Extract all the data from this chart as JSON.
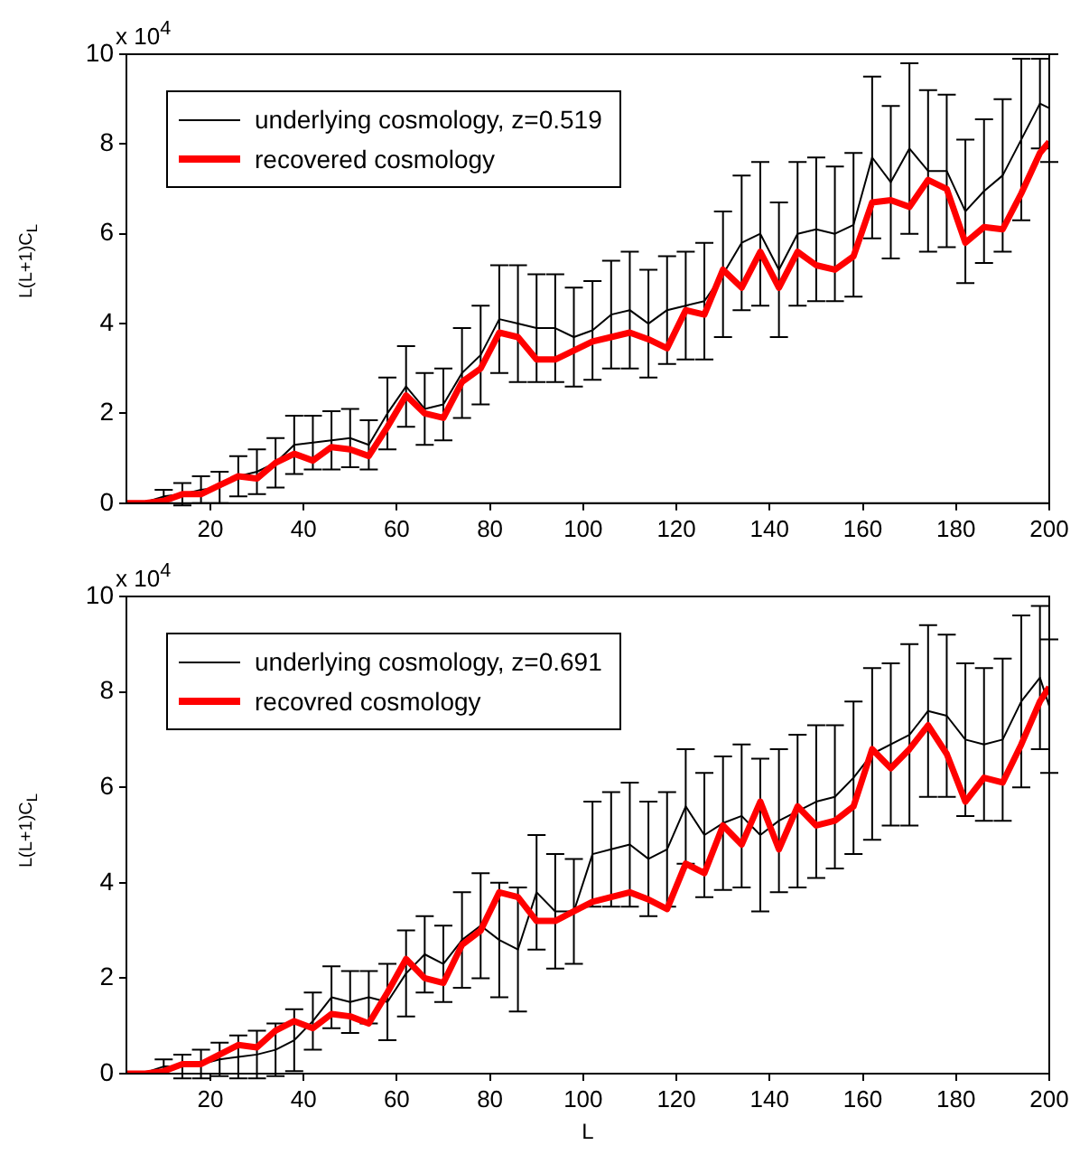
{
  "chart_data": [
    {
      "type": "line",
      "ylabel": "L(L+1)C$_{L}$",
      "annotations": [
        "x 10$^{4}$"
      ],
      "xlim": [
        2,
        200
      ],
      "xticks": [
        20,
        40,
        60,
        80,
        100,
        120,
        140,
        160,
        180,
        200
      ],
      "ylim": [
        0,
        10
      ],
      "yticks": [
        0,
        2,
        4,
        6,
        8,
        10
      ],
      "grid": false,
      "legend": "top left",
      "x": [
        2,
        6,
        10,
        14,
        18,
        22,
        26,
        30,
        34,
        38,
        42,
        46,
        50,
        54,
        58,
        62,
        66,
        70,
        74,
        78,
        82,
        86,
        90,
        94,
        98,
        102,
        106,
        110,
        114,
        118,
        122,
        126,
        130,
        134,
        138,
        142,
        146,
        150,
        154,
        158,
        162,
        166,
        170,
        174,
        178,
        182,
        186,
        190,
        194,
        198,
        200
      ],
      "series": [
        {
          "name": "underlying cosmology, z=0.519",
          "color": "#000000",
          "values": [
            0,
            0.02,
            0.15,
            0.2,
            0.3,
            0.35,
            0.6,
            0.7,
            0.9,
            1.3,
            1.35,
            1.4,
            1.45,
            1.3,
            2.0,
            2.6,
            2.1,
            2.2,
            2.9,
            3.3,
            4.1,
            4.0,
            3.9,
            3.9,
            3.7,
            3.85,
            4.2,
            4.3,
            4.0,
            4.3,
            4.4,
            4.5,
            5.1,
            5.8,
            6.0,
            5.2,
            6.0,
            6.1,
            6.0,
            6.2,
            7.7,
            7.15,
            7.9,
            7.4,
            7.4,
            6.5,
            6.95,
            7.3,
            8.1,
            8.9,
            8.8
          ],
          "errors": [
            null,
            null,
            0.15,
            0.25,
            0.3,
            0.35,
            0.45,
            0.5,
            0.55,
            0.65,
            0.6,
            0.65,
            0.65,
            0.55,
            0.8,
            0.9,
            0.8,
            0.8,
            1.0,
            1.1,
            1.2,
            1.3,
            1.2,
            1.2,
            1.1,
            1.1,
            1.2,
            1.3,
            1.2,
            1.2,
            1.2,
            1.3,
            1.4,
            1.5,
            1.6,
            1.5,
            1.6,
            1.6,
            1.5,
            1.6,
            1.8,
            1.7,
            1.9,
            1.8,
            1.7,
            1.6,
            1.6,
            1.7,
            1.8,
            1.0,
            1.2
          ]
        },
        {
          "name": "recovered cosmology",
          "color": "#ff0000",
          "values": [
            0,
            0,
            0.05,
            0.2,
            0.2,
            0.4,
            0.6,
            0.55,
            0.9,
            1.1,
            0.95,
            1.25,
            1.2,
            1.05,
            1.7,
            2.4,
            2.0,
            1.9,
            2.7,
            3.0,
            3.8,
            3.7,
            3.2,
            3.2,
            3.4,
            3.6,
            3.7,
            3.8,
            3.65,
            3.45,
            4.3,
            4.2,
            5.2,
            4.8,
            5.6,
            4.8,
            5.6,
            5.3,
            5.2,
            5.5,
            6.7,
            6.75,
            6.6,
            7.2,
            7.0,
            5.8,
            6.15,
            6.1,
            6.9,
            7.8,
            8.05
          ]
        }
      ]
    },
    {
      "type": "line",
      "xlabel": "L",
      "ylabel": "L(L+1)C$_{L}$",
      "annotations": [
        "x 10$^{4}$"
      ],
      "xlim": [
        2,
        200
      ],
      "xticks": [
        20,
        40,
        60,
        80,
        100,
        120,
        140,
        160,
        180,
        200
      ],
      "ylim": [
        0,
        10
      ],
      "yticks": [
        0,
        2,
        4,
        6,
        8,
        10
      ],
      "grid": false,
      "legend": "top left",
      "x": [
        2,
        6,
        10,
        14,
        18,
        22,
        26,
        30,
        34,
        38,
        42,
        46,
        50,
        54,
        58,
        62,
        66,
        70,
        74,
        78,
        82,
        86,
        90,
        94,
        98,
        102,
        106,
        110,
        114,
        118,
        122,
        126,
        130,
        134,
        138,
        142,
        146,
        150,
        154,
        158,
        162,
        166,
        170,
        174,
        178,
        182,
        186,
        190,
        194,
        198,
        200
      ],
      "series": [
        {
          "name": "underlying cosmology, z=0.691",
          "color": "#000000",
          "values": [
            0,
            0.02,
            0.15,
            0.15,
            0.2,
            0.3,
            0.35,
            0.4,
            0.5,
            0.7,
            1.1,
            1.6,
            1.5,
            1.6,
            1.5,
            2.1,
            2.5,
            2.3,
            2.8,
            3.1,
            2.8,
            2.6,
            3.8,
            3.4,
            3.4,
            4.6,
            4.7,
            4.8,
            4.5,
            4.7,
            5.6,
            5.0,
            5.25,
            5.4,
            5.0,
            5.3,
            5.5,
            5.7,
            5.8,
            6.2,
            6.7,
            6.9,
            7.1,
            7.6,
            7.5,
            7.0,
            6.9,
            7.0,
            7.8,
            8.3,
            7.7
          ],
          "errors": [
            null,
            null,
            0.15,
            0.25,
            0.3,
            0.35,
            0.45,
            0.5,
            0.55,
            0.65,
            0.6,
            0.65,
            0.65,
            0.55,
            0.8,
            0.9,
            0.8,
            0.8,
            1.0,
            1.1,
            1.2,
            1.3,
            1.2,
            1.2,
            1.1,
            1.1,
            1.2,
            1.3,
            1.2,
            1.2,
            1.2,
            1.3,
            1.4,
            1.5,
            1.6,
            1.5,
            1.6,
            1.6,
            1.5,
            1.6,
            1.8,
            1.7,
            1.9,
            1.8,
            1.7,
            1.6,
            1.6,
            1.7,
            1.8,
            1.5,
            1.4
          ]
        },
        {
          "name": "recovred cosmology",
          "color": "#ff0000",
          "values": [
            0,
            0,
            0.05,
            0.2,
            0.2,
            0.4,
            0.6,
            0.55,
            0.9,
            1.1,
            0.95,
            1.25,
            1.2,
            1.05,
            1.7,
            2.4,
            2.0,
            1.9,
            2.7,
            3.0,
            3.8,
            3.7,
            3.2,
            3.2,
            3.4,
            3.6,
            3.7,
            3.8,
            3.65,
            3.45,
            4.4,
            4.2,
            5.2,
            4.8,
            5.7,
            4.7,
            5.6,
            5.2,
            5.3,
            5.6,
            6.8,
            6.4,
            6.8,
            7.3,
            6.7,
            5.7,
            6.2,
            6.1,
            6.9,
            7.8,
            8.1
          ]
        }
      ]
    }
  ]
}
